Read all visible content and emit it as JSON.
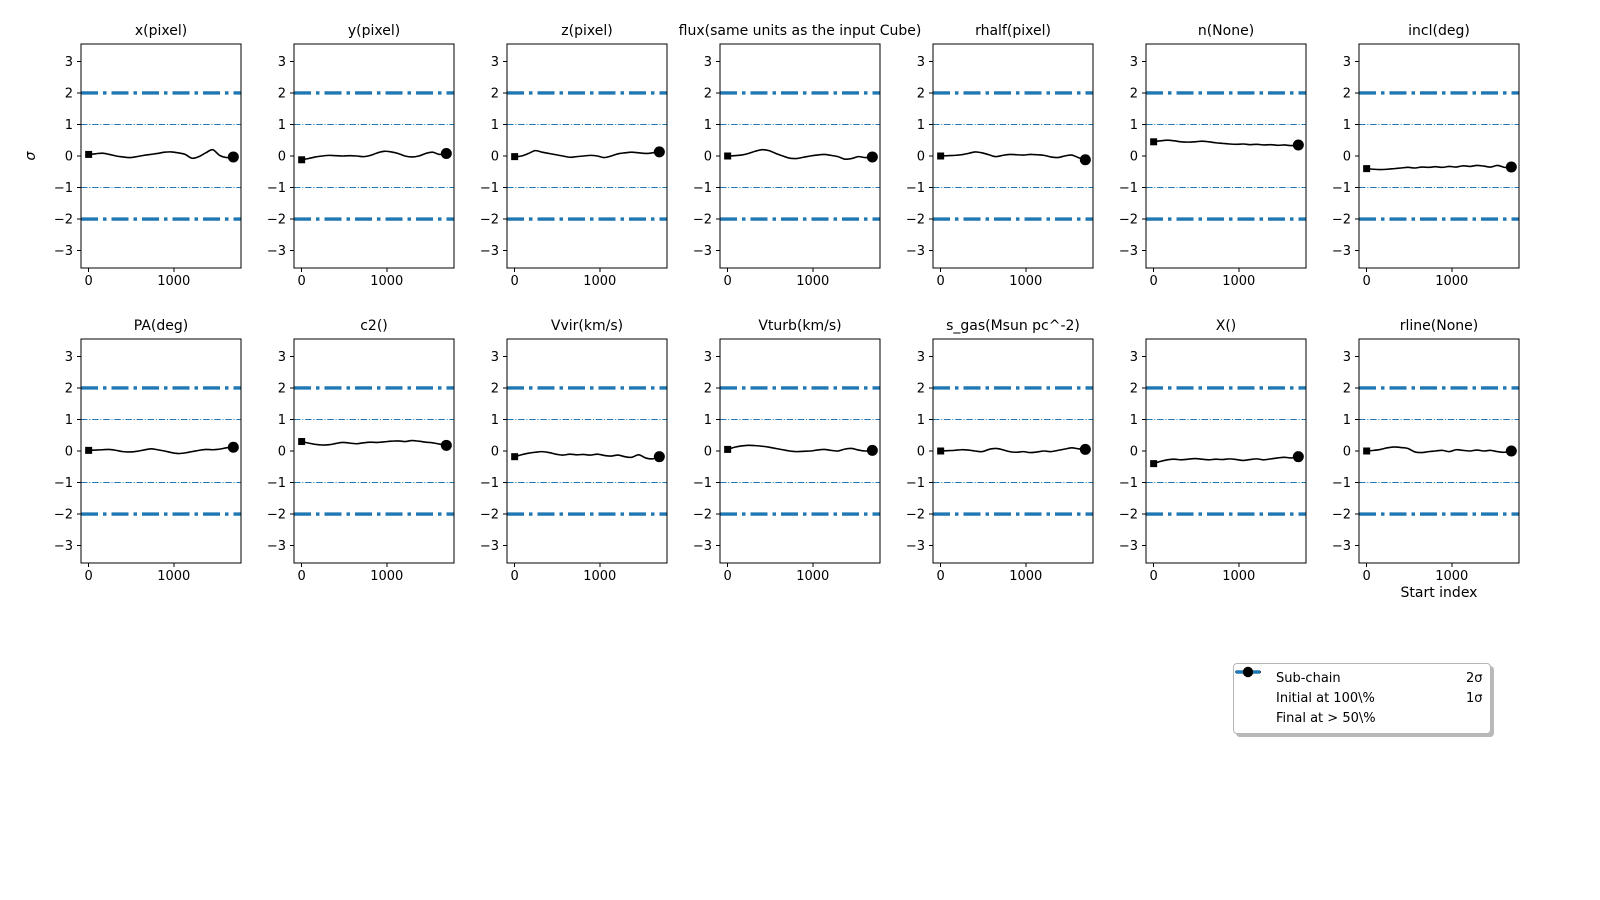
{
  "figure": {
    "background": "#ffffff",
    "trace_color": "#000000",
    "sigma_color": "#1f77b4"
  },
  "legend": {
    "items": [
      {
        "label": "Sub-chain",
        "marker": "solid-line"
      },
      {
        "label": "Initial at 100\\%",
        "marker": "square"
      },
      {
        "label": "Final at  > 50\\%",
        "marker": "circle"
      },
      {
        "label": "2σ",
        "marker": "thick-dashdot-line"
      },
      {
        "label": "1σ",
        "marker": "thin-dashdot-line"
      }
    ]
  },
  "chart_data": {
    "type": "line",
    "title": "",
    "xlabel": "Start index",
    "ylabel": "σ",
    "xlim": [
      -90,
      1790
    ],
    "ylim": [
      -3.55,
      3.55
    ],
    "xticks": [
      0,
      1000
    ],
    "yticks": [
      3,
      2,
      1,
      0,
      -1,
      -2,
      -3
    ],
    "grid": false,
    "sigma_lines": [
      {
        "y": 2,
        "style": "thick-dashdot"
      },
      {
        "y": 1,
        "style": "thin-dashdot"
      },
      {
        "y": -1,
        "style": "thin-dashdot"
      },
      {
        "y": -2,
        "style": "thick-dashdot"
      }
    ],
    "x_range": [
      0,
      1700
    ],
    "marker_initial": "square-at-first-point",
    "marker_final": "circle-at-last-point",
    "panels": [
      {
        "name": "x-pixel",
        "title": "x(pixel)",
        "row": 0,
        "col": 0,
        "values": [
          0.05,
          0.07,
          0.09,
          0.05,
          0.0,
          -0.03,
          -0.05,
          -0.02,
          0.02,
          0.05,
          0.08,
          0.12,
          0.13,
          0.1,
          0.05,
          -0.07,
          -0.02,
          0.1,
          0.2,
          0.02,
          -0.05,
          -0.03
        ]
      },
      {
        "name": "y-pixel",
        "title": "y(pixel)",
        "row": 0,
        "col": 1,
        "values": [
          -0.12,
          -0.08,
          -0.03,
          0.0,
          0.02,
          0.01,
          0.0,
          0.01,
          0.0,
          -0.02,
          0.02,
          0.1,
          0.15,
          0.13,
          0.08,
          0.0,
          -0.03,
          0.0,
          0.08,
          0.12,
          0.05,
          0.08
        ]
      },
      {
        "name": "z-pixel",
        "title": "z(pixel)",
        "row": 0,
        "col": 2,
        "values": [
          -0.02,
          0.0,
          0.08,
          0.17,
          0.12,
          0.08,
          0.04,
          0.0,
          -0.04,
          -0.02,
          0.0,
          0.02,
          0.0,
          -0.05,
          0.0,
          0.07,
          0.1,
          0.12,
          0.1,
          0.08,
          0.1,
          0.13
        ]
      },
      {
        "name": "flux",
        "title": "flux(same units as the input Cube)",
        "row": 0,
        "col": 3,
        "values": [
          0.0,
          0.01,
          0.03,
          0.08,
          0.15,
          0.2,
          0.17,
          0.08,
          0.0,
          -0.07,
          -0.08,
          -0.04,
          0.0,
          0.03,
          0.05,
          0.02,
          -0.02,
          -0.1,
          -0.08,
          -0.02,
          -0.05,
          -0.03
        ]
      },
      {
        "name": "rhalf-pixel",
        "title": "rhalf(pixel)",
        "row": 0,
        "col": 4,
        "values": [
          0.0,
          0.01,
          0.02,
          0.04,
          0.08,
          0.13,
          0.1,
          0.04,
          -0.02,
          0.02,
          0.05,
          0.04,
          0.03,
          0.05,
          0.04,
          0.02,
          -0.03,
          -0.05,
          0.0,
          0.03,
          -0.05,
          -0.12
        ]
      },
      {
        "name": "n-none",
        "title": "n(None)",
        "row": 0,
        "col": 5,
        "values": [
          0.45,
          0.48,
          0.5,
          0.48,
          0.45,
          0.44,
          0.45,
          0.47,
          0.45,
          0.42,
          0.4,
          0.38,
          0.37,
          0.38,
          0.36,
          0.37,
          0.35,
          0.36,
          0.34,
          0.35,
          0.33,
          0.35
        ]
      },
      {
        "name": "incl-deg",
        "title": "incl(deg)",
        "row": 0,
        "col": 6,
        "values": [
          -0.4,
          -0.42,
          -0.43,
          -0.42,
          -0.4,
          -0.38,
          -0.36,
          -0.38,
          -0.35,
          -0.36,
          -0.34,
          -0.36,
          -0.33,
          -0.35,
          -0.31,
          -0.33,
          -0.3,
          -0.32,
          -0.35,
          -0.3,
          -0.36,
          -0.35
        ]
      },
      {
        "name": "pa-deg",
        "title": "PA(deg)",
        "row": 1,
        "col": 0,
        "values": [
          0.02,
          0.03,
          0.04,
          0.05,
          0.02,
          -0.02,
          -0.03,
          -0.01,
          0.03,
          0.07,
          0.04,
          0.0,
          -0.05,
          -0.08,
          -0.06,
          -0.02,
          0.02,
          0.05,
          0.04,
          0.06,
          0.1,
          0.12
        ]
      },
      {
        "name": "c2",
        "title": "c2()",
        "row": 1,
        "col": 1,
        "values": [
          0.3,
          0.25,
          0.21,
          0.19,
          0.2,
          0.24,
          0.27,
          0.25,
          0.23,
          0.26,
          0.28,
          0.27,
          0.29,
          0.31,
          0.32,
          0.3,
          0.33,
          0.31,
          0.28,
          0.26,
          0.22,
          0.18
        ]
      },
      {
        "name": "vvir",
        "title": "Vvir(km/s)",
        "row": 1,
        "col": 2,
        "values": [
          -0.18,
          -0.12,
          -0.07,
          -0.04,
          -0.02,
          -0.05,
          -0.1,
          -0.13,
          -0.1,
          -0.12,
          -0.11,
          -0.13,
          -0.1,
          -0.14,
          -0.16,
          -0.13,
          -0.18,
          -0.2,
          -0.12,
          -0.22,
          -0.25,
          -0.18
        ]
      },
      {
        "name": "vturb",
        "title": "Vturb(km/s)",
        "row": 1,
        "col": 3,
        "values": [
          0.05,
          0.12,
          0.16,
          0.18,
          0.17,
          0.15,
          0.12,
          0.08,
          0.04,
          0.0,
          -0.02,
          -0.01,
          0.0,
          0.03,
          0.05,
          0.02,
          0.0,
          0.06,
          0.08,
          0.03,
          0.0,
          0.02
        ]
      },
      {
        "name": "s-gas",
        "title": "s_gas(Msun pc^-2)",
        "row": 1,
        "col": 4,
        "values": [
          0.0,
          0.01,
          0.02,
          0.04,
          0.03,
          0.0,
          -0.02,
          0.05,
          0.08,
          0.04,
          -0.02,
          -0.04,
          -0.02,
          -0.05,
          -0.03,
          0.0,
          -0.02,
          0.02,
          0.06,
          0.1,
          0.07,
          0.05
        ]
      },
      {
        "name": "x-param",
        "title": "X()",
        "row": 1,
        "col": 5,
        "values": [
          -0.4,
          -0.33,
          -0.28,
          -0.26,
          -0.28,
          -0.26,
          -0.24,
          -0.26,
          -0.28,
          -0.26,
          -0.27,
          -0.25,
          -0.27,
          -0.3,
          -0.27,
          -0.25,
          -0.28,
          -0.25,
          -0.22,
          -0.2,
          -0.22,
          -0.18
        ]
      },
      {
        "name": "rline-none",
        "title": "rline(None)",
        "row": 1,
        "col": 6,
        "values": [
          0.0,
          0.02,
          0.05,
          0.1,
          0.13,
          0.11,
          0.08,
          -0.03,
          -0.05,
          -0.02,
          0.0,
          0.02,
          -0.02,
          0.04,
          0.02,
          0.0,
          0.03,
          0.0,
          0.02,
          -0.02,
          -0.04,
          0.0
        ]
      }
    ]
  }
}
